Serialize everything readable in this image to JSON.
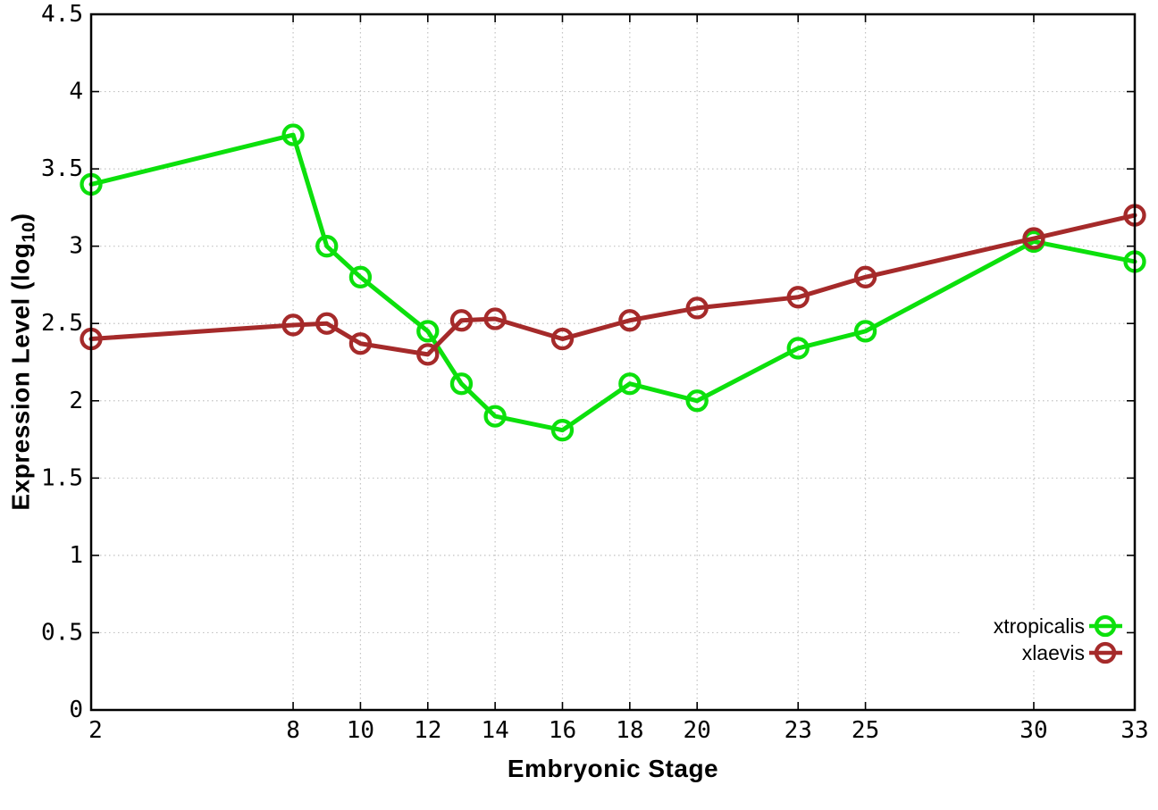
{
  "chart_data": {
    "type": "line",
    "title": "",
    "xlabel": "Embryonic Stage",
    "ylabel": "Expression Level (log10)",
    "ylabel_parts": {
      "pre": "Expression Level (log",
      "sub": "10",
      "post": ")"
    },
    "x": [
      2,
      8,
      9,
      10,
      12,
      13,
      14,
      16,
      18,
      20,
      23,
      25,
      30,
      33
    ],
    "xlim": [
      2,
      33
    ],
    "ylim": [
      0,
      4.5
    ],
    "xticks": [
      2,
      8,
      10,
      12,
      14,
      16,
      18,
      20,
      23,
      25,
      30,
      33
    ],
    "xtick_labels": [
      "2",
      "8",
      "10",
      "12",
      "14",
      "16",
      "18",
      "20",
      "23",
      "25",
      "30",
      "33"
    ],
    "yticks": [
      0,
      0.5,
      1,
      1.5,
      2,
      2.5,
      3,
      3.5,
      4,
      4.5
    ],
    "ytick_labels": [
      "0",
      "0.5",
      "1",
      "1.5",
      "2",
      "2.5",
      "3",
      "3.5",
      "4",
      "4.5"
    ],
    "grid": true,
    "legend_position": "inside-bottom-right",
    "series": [
      {
        "name": "xtropicalis",
        "color": "#0ce00c",
        "marker": "open-circle",
        "values": [
          3.4,
          3.72,
          3.0,
          2.8,
          2.45,
          2.11,
          1.9,
          1.81,
          2.11,
          2.0,
          2.34,
          2.45,
          3.03,
          2.9
        ]
      },
      {
        "name": "xlaevis",
        "color": "#a52a2a",
        "marker": "open-circle",
        "values": [
          2.4,
          2.49,
          2.5,
          2.37,
          2.3,
          2.52,
          2.53,
          2.4,
          2.52,
          2.6,
          2.67,
          2.8,
          3.05,
          3.2
        ]
      }
    ]
  },
  "styles": {
    "background": "#ffffff",
    "border_color": "#000000",
    "grid_color": "#c2c2c2",
    "tick_color": "#000000",
    "text_color": "#000000"
  }
}
